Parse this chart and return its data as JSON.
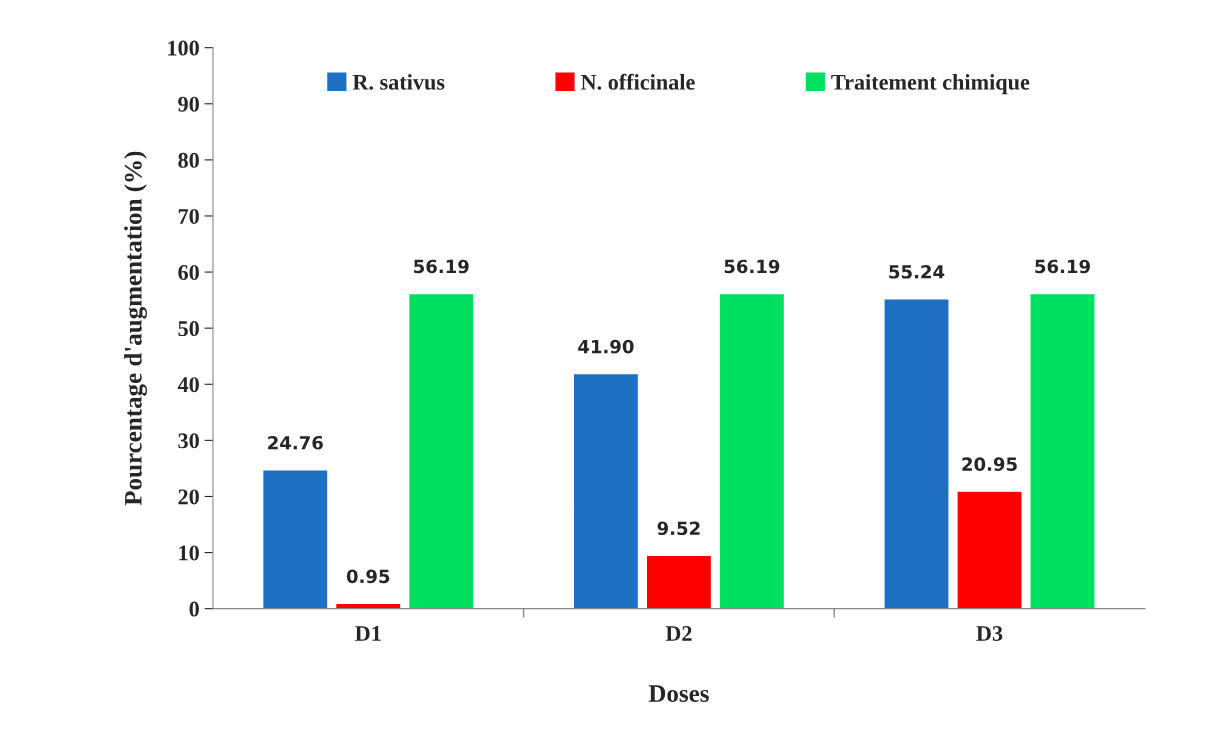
{
  "chart_data": {
    "type": "bar",
    "xlabel": "Doses",
    "ylabel": "Pourcentage d'augmentation (%)",
    "categories": [
      "D1",
      "D2",
      "D3"
    ],
    "series": [
      {
        "name": "R. sativus",
        "color": "#1f6fc2",
        "values": [
          24.76,
          41.9,
          55.24
        ],
        "value_labels": [
          "24.76",
          "41.90",
          "55.24"
        ]
      },
      {
        "name": "N. officinale",
        "color": "#ff0000",
        "values": [
          0.95,
          9.52,
          20.95
        ],
        "value_labels": [
          "0.95",
          "9.52",
          "20.95"
        ]
      },
      {
        "name": "Traitement chimique",
        "color": "#00e060",
        "values": [
          56.19,
          56.19,
          56.19
        ],
        "value_labels": [
          "56.19",
          "56.19",
          "56.19"
        ]
      }
    ],
    "ylim": [
      0,
      100
    ],
    "yticks": [
      0,
      10,
      20,
      30,
      40,
      50,
      60,
      70,
      80,
      90,
      100
    ],
    "grid": false,
    "legend": "top"
  }
}
